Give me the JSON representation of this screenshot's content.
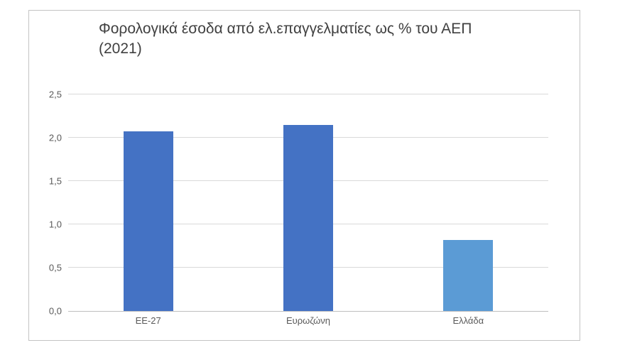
{
  "chart_data": {
    "type": "bar",
    "title": "Φορολογικά έσοδα από ελ.επαγγελματίες ως % του ΑΕΠ\n(2021)",
    "categories": [
      "EE-27",
      "Ευρωζώνη",
      "Ελλάδα"
    ],
    "values": [
      2.07,
      2.15,
      0.82
    ],
    "colors": [
      "#4472c4",
      "#4472c4",
      "#5b9bd5"
    ],
    "xlabel": "",
    "ylabel": "",
    "ylim": [
      0,
      2.5
    ],
    "yticks": [
      {
        "label": "0,0",
        "value": 0.0
      },
      {
        "label": "0,5",
        "value": 0.5
      },
      {
        "label": "1,0",
        "value": 1.0
      },
      {
        "label": "1,5",
        "value": 1.5
      },
      {
        "label": "2,0",
        "value": 2.0
      },
      {
        "label": "2,5",
        "value": 2.5
      }
    ],
    "grid": true,
    "legend": false,
    "decimal_separator": ","
  },
  "style": {
    "title_color": "#404040",
    "tick_color": "#595959",
    "gridline_color": "#d9d9d9",
    "axis_color": "#bfbfbf",
    "border_color": "#c3c3c3"
  }
}
